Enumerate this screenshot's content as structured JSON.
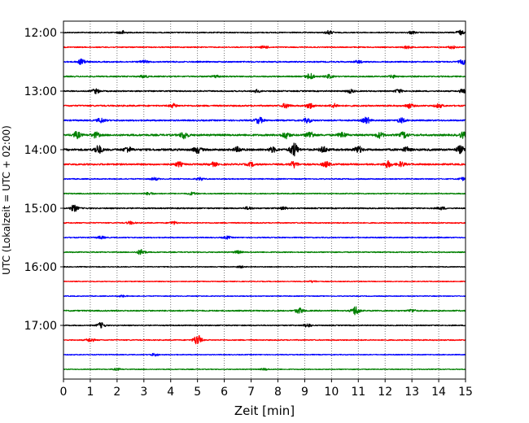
{
  "chart_data": {
    "type": "line",
    "title": "",
    "xlabel": "Zeit  [min]",
    "ylabel": "UTC (Lokalzeit = UTC + 02:00)",
    "xlim": [
      0,
      15
    ],
    "x_ticks": [
      "0",
      "1",
      "2",
      "3",
      "4",
      "5",
      "6",
      "7",
      "8",
      "9",
      "10",
      "11",
      "12",
      "13",
      "14",
      "15"
    ],
    "y_ticks": [
      "12:00",
      "13:00",
      "14:00",
      "15:00",
      "16:00",
      "17:00"
    ],
    "trace_interval_min": 15,
    "start_time": "12:00",
    "grid": "vertical dotted",
    "colors": [
      "#000000",
      "#ff0000",
      "#0000ff",
      "#008000"
    ],
    "traces": [
      {
        "time": "12:00",
        "color": "#000000",
        "amplitude": 0.25,
        "events": [
          [
            2.2,
            0.4
          ],
          [
            9.9,
            0.4
          ],
          [
            13.0,
            0.3
          ],
          [
            14.8,
            0.5
          ]
        ]
      },
      {
        "time": "12:15",
        "color": "#ff0000",
        "amplitude": 0.25,
        "events": [
          [
            7.5,
            0.3
          ],
          [
            12.8,
            0.3
          ],
          [
            14.5,
            0.3
          ]
        ]
      },
      {
        "time": "12:30",
        "color": "#0000ff",
        "amplitude": 0.3,
        "events": [
          [
            0.7,
            0.7
          ],
          [
            3.0,
            0.3
          ],
          [
            11.0,
            0.3
          ],
          [
            14.9,
            0.5
          ]
        ]
      },
      {
        "time": "12:45",
        "color": "#008000",
        "amplitude": 0.3,
        "events": [
          [
            3.0,
            0.3
          ],
          [
            5.7,
            0.3
          ],
          [
            9.2,
            0.7
          ],
          [
            9.9,
            0.4
          ],
          [
            12.3,
            0.3
          ]
        ]
      },
      {
        "time": "13:00",
        "color": "#000000",
        "amplitude": 0.3,
        "events": [
          [
            1.2,
            0.5
          ],
          [
            7.2,
            0.3
          ],
          [
            10.7,
            0.4
          ],
          [
            12.5,
            0.4
          ],
          [
            14.9,
            0.4
          ]
        ]
      },
      {
        "time": "13:15",
        "color": "#ff0000",
        "amplitude": 0.35,
        "events": [
          [
            4.1,
            0.4
          ],
          [
            8.3,
            0.5
          ],
          [
            9.2,
            0.6
          ],
          [
            10.1,
            0.4
          ],
          [
            12.9,
            0.5
          ],
          [
            14.0,
            0.4
          ]
        ]
      },
      {
        "time": "13:30",
        "color": "#0000ff",
        "amplitude": 0.35,
        "events": [
          [
            1.4,
            0.5
          ],
          [
            7.3,
            0.7
          ],
          [
            9.1,
            0.5
          ],
          [
            11.3,
            0.7
          ],
          [
            12.6,
            0.5
          ]
        ]
      },
      {
        "time": "13:45",
        "color": "#008000",
        "amplitude": 0.45,
        "events": [
          [
            0.5,
            0.7
          ],
          [
            1.2,
            0.6
          ],
          [
            4.5,
            0.8
          ],
          [
            8.3,
            0.7
          ],
          [
            9.2,
            0.8
          ],
          [
            10.4,
            0.6
          ],
          [
            11.8,
            0.6
          ],
          [
            12.7,
            0.7
          ],
          [
            14.9,
            0.6
          ]
        ]
      },
      {
        "time": "14:00",
        "color": "#000000",
        "amplitude": 0.5,
        "events": [
          [
            1.3,
            0.9
          ],
          [
            2.4,
            0.6
          ],
          [
            5.0,
            0.7
          ],
          [
            6.5,
            0.5
          ],
          [
            7.8,
            0.5
          ],
          [
            8.6,
            1.5
          ],
          [
            9.7,
            0.6
          ],
          [
            11.0,
            0.7
          ],
          [
            12.8,
            0.5
          ],
          [
            14.8,
            0.8
          ]
        ]
      },
      {
        "time": "14:15",
        "color": "#ff0000",
        "amplitude": 0.4,
        "events": [
          [
            4.3,
            0.5
          ],
          [
            5.6,
            0.4
          ],
          [
            7.0,
            0.4
          ],
          [
            8.6,
            0.7
          ],
          [
            9.8,
            0.6
          ],
          [
            12.1,
            0.7
          ],
          [
            12.6,
            0.5
          ]
        ]
      },
      {
        "time": "14:30",
        "color": "#0000ff",
        "amplitude": 0.25,
        "events": [
          [
            3.4,
            0.3
          ],
          [
            5.1,
            0.3
          ],
          [
            14.9,
            0.3
          ]
        ]
      },
      {
        "time": "14:45",
        "color": "#008000",
        "amplitude": 0.25,
        "events": [
          [
            3.2,
            0.3
          ],
          [
            4.8,
            0.3
          ]
        ]
      },
      {
        "time": "15:00",
        "color": "#000000",
        "amplitude": 0.3,
        "events": [
          [
            0.4,
            0.7
          ],
          [
            6.9,
            0.3
          ],
          [
            8.2,
            0.3
          ],
          [
            14.1,
            0.3
          ]
        ]
      },
      {
        "time": "15:15",
        "color": "#ff0000",
        "amplitude": 0.25,
        "events": [
          [
            2.5,
            0.3
          ],
          [
            4.1,
            0.3
          ]
        ]
      },
      {
        "time": "15:30",
        "color": "#0000ff",
        "amplitude": 0.25,
        "events": [
          [
            1.4,
            0.3
          ],
          [
            6.1,
            0.3
          ]
        ]
      },
      {
        "time": "15:45",
        "color": "#008000",
        "amplitude": 0.25,
        "events": [
          [
            2.9,
            0.6
          ],
          [
            6.5,
            0.3
          ]
        ]
      },
      {
        "time": "16:00",
        "color": "#000000",
        "amplitude": 0.2,
        "events": [
          [
            6.6,
            0.2
          ]
        ]
      },
      {
        "time": "16:15",
        "color": "#ff0000",
        "amplitude": 0.2,
        "events": [
          [
            9.3,
            0.2
          ]
        ]
      },
      {
        "time": "16:30",
        "color": "#0000ff",
        "amplitude": 0.2,
        "events": [
          [
            2.2,
            0.2
          ]
        ]
      },
      {
        "time": "16:45",
        "color": "#008000",
        "amplitude": 0.3,
        "events": [
          [
            8.8,
            0.6
          ],
          [
            10.9,
            1.0
          ],
          [
            13.0,
            0.3
          ]
        ]
      },
      {
        "time": "17:00",
        "color": "#000000",
        "amplitude": 0.25,
        "events": [
          [
            1.4,
            0.6
          ],
          [
            9.1,
            0.4
          ]
        ]
      },
      {
        "time": "17:15",
        "color": "#ff0000",
        "amplitude": 0.25,
        "events": [
          [
            1.0,
            0.4
          ],
          [
            5.0,
            1.2
          ]
        ]
      },
      {
        "time": "17:30",
        "color": "#0000ff",
        "amplitude": 0.2,
        "events": [
          [
            3.4,
            0.3
          ]
        ]
      },
      {
        "time": "17:45",
        "color": "#008000",
        "amplitude": 0.2,
        "events": [
          [
            2.0,
            0.2
          ],
          [
            7.5,
            0.2
          ]
        ]
      }
    ]
  }
}
